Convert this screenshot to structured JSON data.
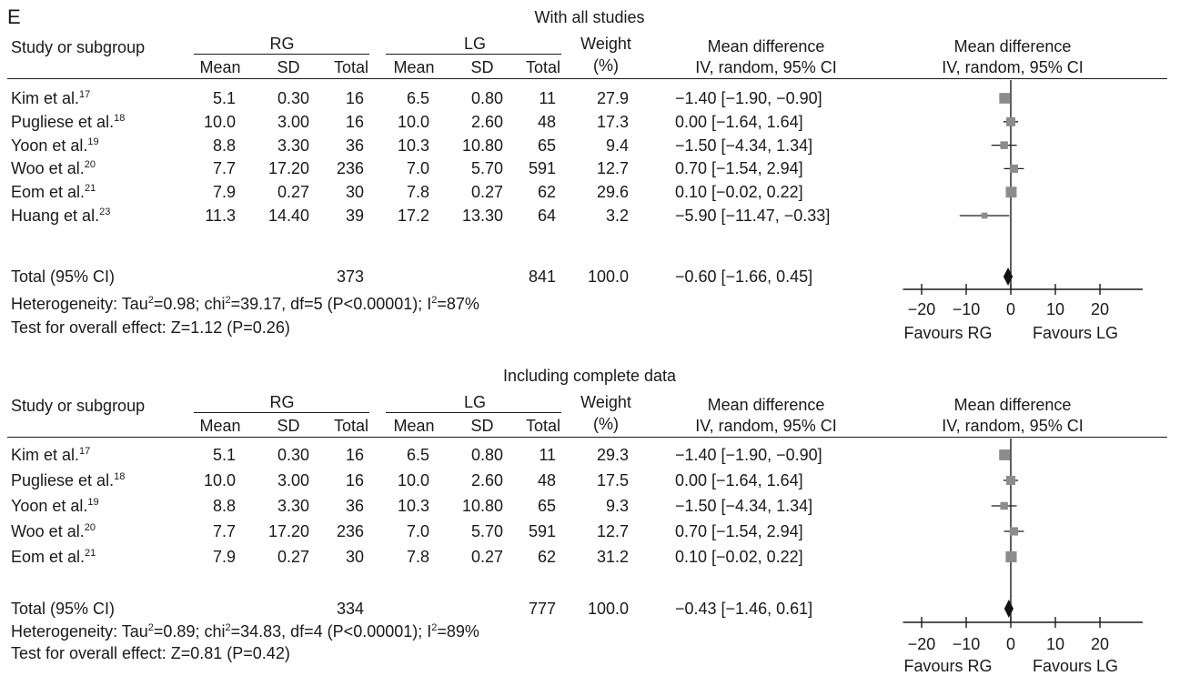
{
  "panel_label": "E",
  "chart_data": [
    {
      "type": "forest",
      "title": "With all studies",
      "headers": {
        "study": "Study or subgroup",
        "group1": "RG",
        "group2": "LG",
        "mean": "Mean",
        "sd": "SD",
        "total": "Total",
        "weight_line1": "Weight",
        "weight_line2": "(%)",
        "md_line1": "Mean difference",
        "md_line2": "IV, random, 95% CI",
        "plot_line1": "Mean difference",
        "plot_line2": "IV, random, 95% CI"
      },
      "studies": [
        {
          "name": "Kim et al.",
          "ref": "17",
          "rg_mean": "5.1",
          "rg_sd": "0.30",
          "rg_total": "16",
          "lg_mean": "6.5",
          "lg_sd": "0.80",
          "lg_total": "11",
          "weight": "27.9",
          "ci_text": "−1.40 [−1.90, −0.90]",
          "md": -1.4,
          "lo": -1.9,
          "hi": -0.9,
          "w": 27.9
        },
        {
          "name": "Pugliese et al.",
          "ref": "18",
          "rg_mean": "10.0",
          "rg_sd": "3.00",
          "rg_total": "16",
          "lg_mean": "10.0",
          "lg_sd": "2.60",
          "lg_total": "48",
          "weight": "17.3",
          "ci_text": "0.00 [−1.64, 1.64]",
          "md": 0.0,
          "lo": -1.64,
          "hi": 1.64,
          "w": 17.3
        },
        {
          "name": "Yoon et al.",
          "ref": "19",
          "rg_mean": "8.8",
          "rg_sd": "3.30",
          "rg_total": "36",
          "lg_mean": "10.3",
          "lg_sd": "10.80",
          "lg_total": "65",
          "weight": "9.4",
          "ci_text": "−1.50 [−4.34, 1.34]",
          "md": -1.5,
          "lo": -4.34,
          "hi": 1.34,
          "w": 9.4
        },
        {
          "name": "Woo et al.",
          "ref": "20",
          "rg_mean": "7.7",
          "rg_sd": "17.20",
          "rg_total": "236",
          "lg_mean": "7.0",
          "lg_sd": "5.70",
          "lg_total": "591",
          "weight": "12.7",
          "ci_text": "0.70 [−1.54, 2.94]",
          "md": 0.7,
          "lo": -1.54,
          "hi": 2.94,
          "w": 12.7
        },
        {
          "name": "Eom et al.",
          "ref": "21",
          "rg_mean": "7.9",
          "rg_sd": "0.27",
          "rg_total": "30",
          "lg_mean": "7.8",
          "lg_sd": "0.27",
          "lg_total": "62",
          "weight": "29.6",
          "ci_text": "0.10 [−0.02, 0.22]",
          "md": 0.1,
          "lo": -0.02,
          "hi": 0.22,
          "w": 29.6
        },
        {
          "name": "Huang et al.",
          "ref": "23",
          "rg_mean": "11.3",
          "rg_sd": "14.40",
          "rg_total": "39",
          "lg_mean": "17.2",
          "lg_sd": "13.30",
          "lg_total": "64",
          "weight": "3.2",
          "ci_text": "−5.90 [−11.47, −0.33]",
          "md": -5.9,
          "lo": -11.47,
          "hi": -0.33,
          "w": 3.2
        }
      ],
      "total": {
        "label": "Total (95% CI)",
        "rg_total": "373",
        "lg_total": "841",
        "weight": "100.0",
        "ci_text": "−0.60 [−1.66, 0.45]",
        "md": -0.6,
        "lo": -1.66,
        "hi": 0.45
      },
      "heterogeneity": {
        "prefix": "Heterogeneity: Tau",
        "tau2": "=0.98; chi",
        "chi2": "=39.17, df=5 (P<0.00001); I",
        "i2": "=87%"
      },
      "overall": "Test for overall effect: Z=1.12 (P=0.26)",
      "axis": {
        "ticks": [
          -20,
          -10,
          0,
          10,
          20
        ],
        "tick_labels": [
          "−20",
          "−10",
          "0",
          "10",
          "20"
        ],
        "xlim": [
          -25,
          30
        ],
        "left_label": "Favours RG",
        "right_label": "Favours LG"
      }
    },
    {
      "type": "forest",
      "title": "Including complete data",
      "headers": {
        "study": "Study or subgroup",
        "group1": "RG",
        "group2": "LG",
        "mean": "Mean",
        "sd": "SD",
        "total": "Total",
        "weight_line1": "Weight",
        "weight_line2": "(%)",
        "md_line1": "Mean difference",
        "md_line2": "IV, random, 95% CI",
        "plot_line1": "Mean difference",
        "plot_line2": "IV, random, 95% CI"
      },
      "studies": [
        {
          "name": "Kim et al.",
          "ref": "17",
          "rg_mean": "5.1",
          "rg_sd": "0.30",
          "rg_total": "16",
          "lg_mean": "6.5",
          "lg_sd": "0.80",
          "lg_total": "11",
          "weight": "29.3",
          "ci_text": "−1.40 [−1.90, −0.90]",
          "md": -1.4,
          "lo": -1.9,
          "hi": -0.9,
          "w": 29.3
        },
        {
          "name": "Pugliese et al.",
          "ref": "18",
          "rg_mean": "10.0",
          "rg_sd": "3.00",
          "rg_total": "16",
          "lg_mean": "10.0",
          "lg_sd": "2.60",
          "lg_total": "48",
          "weight": "17.5",
          "ci_text": "0.00 [−1.64, 1.64]",
          "md": 0.0,
          "lo": -1.64,
          "hi": 1.64,
          "w": 17.5
        },
        {
          "name": "Yoon et al.",
          "ref": "19",
          "rg_mean": "8.8",
          "rg_sd": "3.30",
          "rg_total": "36",
          "lg_mean": "10.3",
          "lg_sd": "10.80",
          "lg_total": "65",
          "weight": "9.3",
          "ci_text": "−1.50 [−4.34, 1.34]",
          "md": -1.5,
          "lo": -4.34,
          "hi": 1.34,
          "w": 9.3
        },
        {
          "name": "Woo et al.",
          "ref": "20",
          "rg_mean": "7.7",
          "rg_sd": "17.20",
          "rg_total": "236",
          "lg_mean": "7.0",
          "lg_sd": "5.70",
          "lg_total": "591",
          "weight": "12.7",
          "ci_text": "0.70 [−1.54, 2.94]",
          "md": 0.7,
          "lo": -1.54,
          "hi": 2.94,
          "w": 12.7
        },
        {
          "name": "Eom et al.",
          "ref": "21",
          "rg_mean": "7.9",
          "rg_sd": "0.27",
          "rg_total": "30",
          "lg_mean": "7.8",
          "lg_sd": "0.27",
          "lg_total": "62",
          "weight": "31.2",
          "ci_text": "0.10 [−0.02, 0.22]",
          "md": 0.1,
          "lo": -0.02,
          "hi": 0.22,
          "w": 31.2
        }
      ],
      "total": {
        "label": "Total (95% CI)",
        "rg_total": "334",
        "lg_total": "777",
        "weight": "100.0",
        "ci_text": "−0.43 [−1.46, 0.61]",
        "md": -0.43,
        "lo": -1.46,
        "hi": 0.61
      },
      "heterogeneity": {
        "prefix": "Heterogeneity: Tau",
        "tau2": "=0.89; chi",
        "chi2": "=34.83, df=4 (P<0.00001); I",
        "i2": "=89%"
      },
      "overall": "Test for overall effect: Z=0.81 (P=0.42)",
      "axis": {
        "ticks": [
          -20,
          -10,
          0,
          10,
          20
        ],
        "tick_labels": [
          "−20",
          "−10",
          "0",
          "10",
          "20"
        ],
        "xlim": [
          -25,
          30
        ],
        "left_label": "Favours RG",
        "right_label": "Favours LG"
      }
    }
  ],
  "colors": {
    "text": "#1a1a1a",
    "marker": "#8c8c8c",
    "diamond": "#111111"
  }
}
